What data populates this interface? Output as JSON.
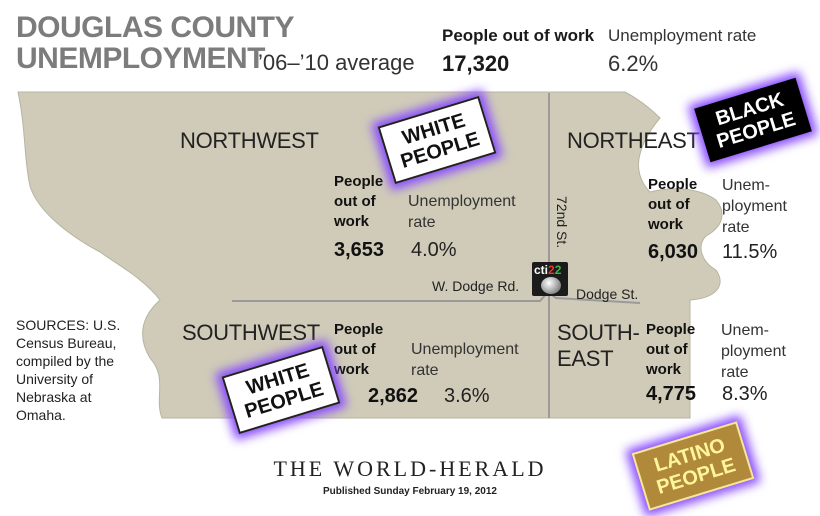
{
  "title": {
    "line1": "DOUGLAS COUNTY",
    "line2": "UNEMPLOYMENT",
    "period": "’06–’10 average"
  },
  "county": {
    "people_label": "People out of work",
    "rate_label": "Unemployment rate",
    "people": "17,320",
    "rate": "6.2%"
  },
  "regions": {
    "northwest": {
      "name": "NORTHWEST",
      "people_l1": "People",
      "people_l2": "out of",
      "people_l3": "work",
      "rate_l1": "Unemployment",
      "rate_l2": "rate",
      "people": "3,653",
      "rate": "4.0%"
    },
    "northeast": {
      "name": "NORTHEAST",
      "people_l1": "People",
      "people_l2": "out of",
      "people_l3": "work",
      "rate_l1": "Unem-",
      "rate_l2": "ployment",
      "rate_l3": "rate",
      "people": "6,030",
      "rate": "11.5%"
    },
    "southwest": {
      "name": "SOUTHWEST",
      "people_l1": "People",
      "people_l2": "out of",
      "people_l3": "work",
      "rate_l1": "Unemployment",
      "rate_l2": "rate",
      "people": "2,862",
      "rate": "3.6%"
    },
    "southeast": {
      "name_l1": "SOUTH-",
      "name_l2": "EAST",
      "people_l1": "People",
      "people_l2": "out of",
      "people_l3": "work",
      "rate_l1": "Unem-",
      "rate_l2": "ployment",
      "rate_l3": "rate",
      "people": "4,775",
      "rate": "8.3%"
    }
  },
  "streets": {
    "seventy_second": "72nd St.",
    "w_dodge": "W. Dodge Rd.",
    "dodge": "Dodge St."
  },
  "sources": [
    "SOURCES: U.S.",
    "Census Bureau,",
    "compiled by the",
    "University of",
    "Nebraska at",
    "Omaha."
  ],
  "footer": {
    "paper": "THE WORLD-HERALD",
    "published": "Published Sunday February 19, 2012"
  },
  "signs": {
    "white_nw": {
      "l1": "WHITE",
      "l2": "PEOPLE"
    },
    "black": {
      "l1": "BLACK",
      "l2": "PEOPLE"
    },
    "white_sw": {
      "l1": "WHITE",
      "l2": "PEOPLE"
    },
    "latino": {
      "l1": "LATINO",
      "l2": "PEOPLE"
    }
  },
  "logo": {
    "text_a": "cti",
    "text_b": "2",
    "text_c": "2"
  },
  "colors": {
    "map_fill": "#cfcbb8",
    "map_line": "#9a9a9a",
    "title_gray": "#7c7c7c",
    "glow": "#8a4cff"
  }
}
